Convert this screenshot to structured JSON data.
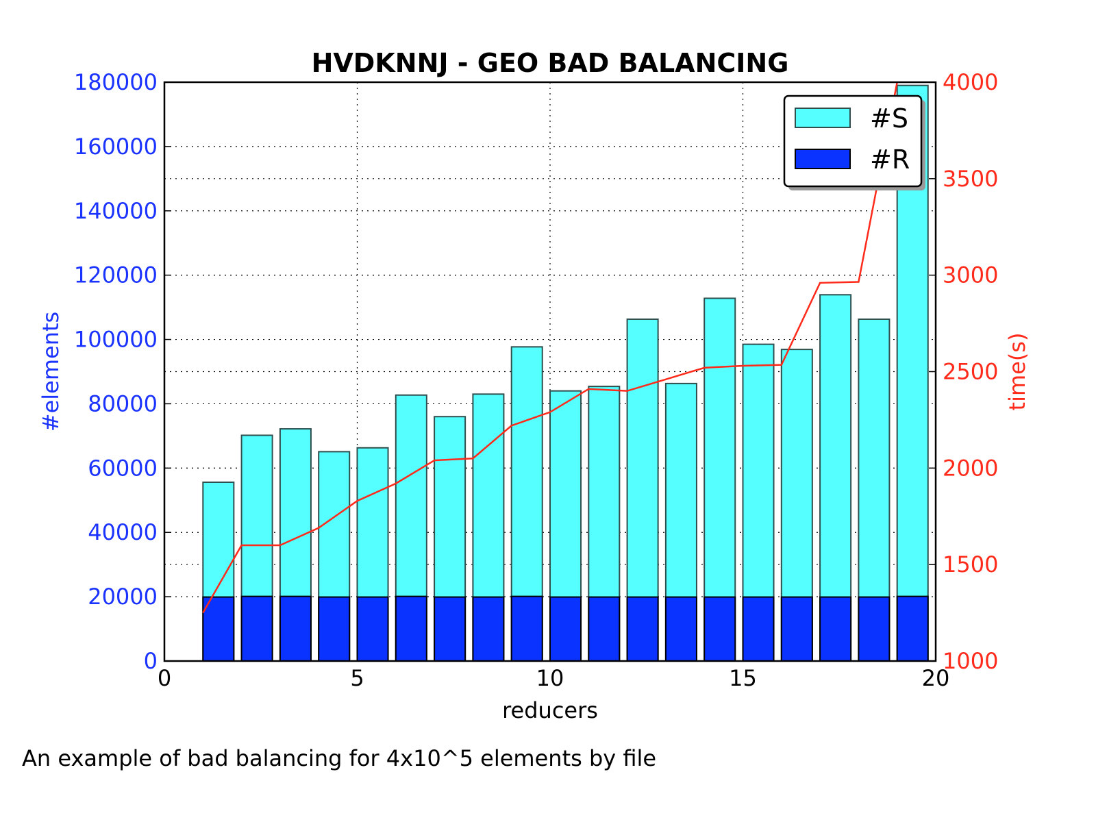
{
  "chart_data": {
    "type": "bar",
    "title": "HVDKNNJ - GEO BAD BALANCING",
    "xlabel": "reducers",
    "ylabel": "#elements",
    "y2label": "time(s)",
    "xlim": [
      0,
      20
    ],
    "ylim": [
      0,
      180000
    ],
    "y2lim": [
      1000,
      4000
    ],
    "xticks": [
      0,
      5,
      10,
      15,
      20
    ],
    "yticks": [
      0,
      20000,
      40000,
      60000,
      80000,
      100000,
      120000,
      140000,
      160000,
      180000
    ],
    "y2ticks": [
      1000,
      1500,
      2000,
      2500,
      3000,
      3500,
      4000
    ],
    "grid": true,
    "legend_position": "top-right",
    "x": [
      1,
      2,
      3,
      4,
      5,
      6,
      7,
      8,
      9,
      10,
      11,
      12,
      13,
      14,
      15,
      16,
      17,
      18,
      19
    ],
    "series": [
      {
        "name": "#S",
        "kind": "bar",
        "axis": "left",
        "color": "#55ffff",
        "values": [
          55600,
          70200,
          72200,
          65100,
          66300,
          82700,
          76000,
          83000,
          97700,
          84000,
          85400,
          106300,
          86300,
          112800,
          98500,
          96900,
          113900,
          106300,
          179000
        ]
      },
      {
        "name": "#R",
        "kind": "bar",
        "axis": "left",
        "color": "#0a33ff",
        "values": [
          19900,
          20100,
          20100,
          19900,
          19900,
          20100,
          19900,
          19900,
          20100,
          19900,
          19900,
          19900,
          19900,
          19900,
          19900,
          19900,
          19900,
          19900,
          20100
        ]
      },
      {
        "name": "time(s)",
        "kind": "line",
        "axis": "right",
        "color": "#ff2a1a",
        "values": [
          1250,
          1600,
          1600,
          1690,
          1830,
          1920,
          2040,
          2050,
          2220,
          2290,
          2410,
          2400,
          2460,
          2520,
          2530,
          2535,
          2960,
          2965,
          4000
        ]
      }
    ],
    "colors": {
      "left_axis": "#1a33ff",
      "right_axis": "#ff2a1a",
      "bar_edge": "#2f4f4f"
    }
  },
  "caption": "An example of bad balancing for 4x10^5 elements by file"
}
